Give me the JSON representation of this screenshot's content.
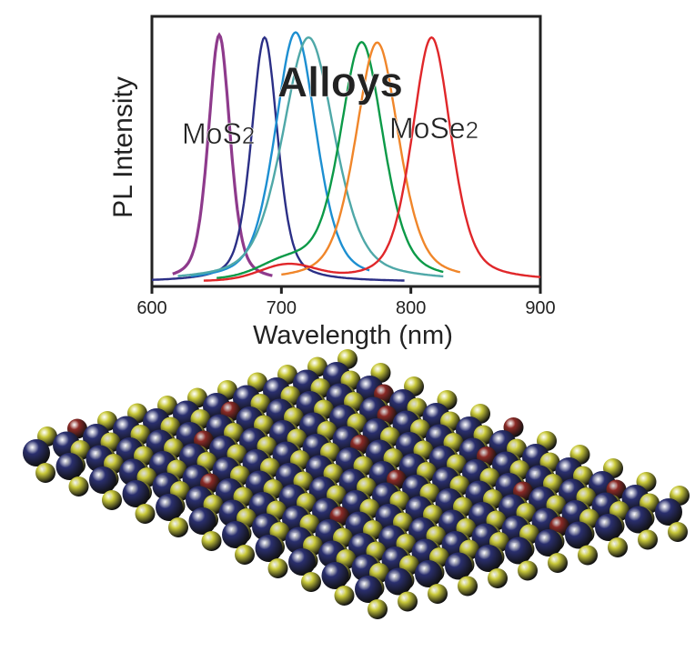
{
  "chart_data": {
    "type": "line",
    "title": "",
    "xlabel": "Wavelength (nm)",
    "ylabel": "PL Intensity",
    "xlim": [
      600,
      900
    ],
    "ylim": [
      0,
      1
    ],
    "xticks": [
      "600",
      "700",
      "800",
      "900"
    ],
    "yticks": [],
    "grid": false,
    "annotations": [
      {
        "text": "Alloys",
        "bold": true
      },
      {
        "text": "MoS",
        "sub": "2"
      },
      {
        "text": "MoSe",
        "sub": "2"
      }
    ],
    "series": [
      {
        "color": "#8e3a8c",
        "peak_nm": 652,
        "fwhm_nm": 20,
        "peak_intensity": 0.97,
        "range_nm": [
          616,
          693
        ]
      },
      {
        "color": "#2b2f86",
        "peak_nm": 687,
        "fwhm_nm": 24,
        "peak_intensity": 0.96,
        "range_nm": [
          600,
          795
        ]
      },
      {
        "color": "#1d8fd1",
        "peak_nm": 711,
        "fwhm_nm": 38,
        "peak_intensity": 0.98,
        "range_nm": [
          630,
          768
        ]
      },
      {
        "color": "#4fa8a8",
        "peak_nm": 721,
        "fwhm_nm": 48,
        "peak_intensity": 0.96,
        "range_nm": [
          620,
          825
        ]
      },
      {
        "color": "#0c9a48",
        "peak_nm": 762,
        "fwhm_nm": 40,
        "peak_intensity": 0.94,
        "range_nm": [
          650,
          825
        ]
      },
      {
        "color": "#f0862a",
        "peak_nm": 774,
        "fwhm_nm": 40,
        "peak_intensity": 0.94,
        "range_nm": [
          700,
          838
        ]
      },
      {
        "color": "#e0272a",
        "peak_nm": 816,
        "fwhm_nm": 36,
        "peak_intensity": 0.96,
        "range_nm": [
          640,
          900
        ]
      }
    ]
  },
  "model": {
    "colors": {
      "metal": "#2a2f6e",
      "sulfur": "#c9c93a",
      "selenium": "#8a2a26"
    }
  }
}
